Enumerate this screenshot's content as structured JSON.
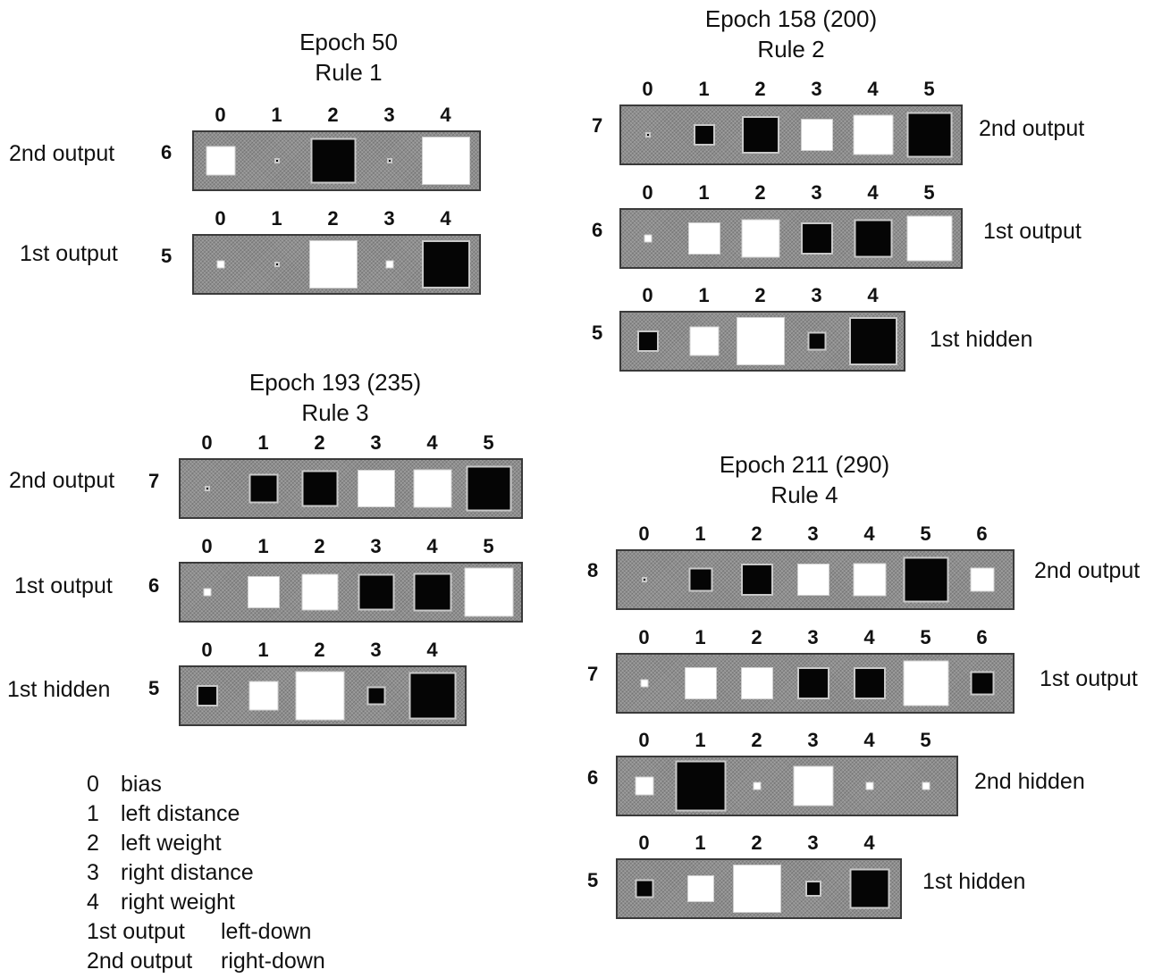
{
  "panels": [
    {
      "title": "Epoch 50",
      "subtitle": "Rule 1",
      "rows": [
        {
          "unit": "6",
          "label": "2nd output",
          "cols": [
            "0",
            "1",
            "2",
            "3",
            "4"
          ],
          "weights": [
            [
              "w",
              0.55
            ],
            [
              "b",
              0.1
            ],
            [
              "b",
              0.85
            ],
            [
              "b",
              0.1
            ],
            [
              "w",
              0.9
            ]
          ]
        },
        {
          "unit": "5",
          "label": "1st output",
          "cols": [
            "0",
            "1",
            "2",
            "3",
            "4"
          ],
          "weights": [
            [
              "w",
              0.15
            ],
            [
              "b",
              0.1
            ],
            [
              "w",
              0.9
            ],
            [
              "w",
              0.15
            ],
            [
              "b",
              0.9
            ]
          ]
        }
      ]
    },
    {
      "title": "Epoch 158 (200)",
      "subtitle": "Rule 2",
      "rows": [
        {
          "unit": "7",
          "label": "2nd output",
          "cols": [
            "0",
            "1",
            "2",
            "3",
            "4",
            "5"
          ],
          "weights": [
            [
              "b",
              0.1
            ],
            [
              "b",
              0.4
            ],
            [
              "b",
              0.7
            ],
            [
              "w",
              0.6
            ],
            [
              "w",
              0.75
            ],
            [
              "b",
              0.85
            ]
          ]
        },
        {
          "unit": "6",
          "label": "1st output",
          "cols": [
            "0",
            "1",
            "2",
            "3",
            "4",
            "5"
          ],
          "weights": [
            [
              "w",
              0.15
            ],
            [
              "w",
              0.6
            ],
            [
              "w",
              0.72
            ],
            [
              "b",
              0.6
            ],
            [
              "b",
              0.72
            ],
            [
              "w",
              0.85
            ]
          ]
        },
        {
          "unit": "5",
          "label": "1st hidden",
          "cols": [
            "0",
            "1",
            "2",
            "3",
            "4"
          ],
          "weights": [
            [
              "b",
              0.4
            ],
            [
              "w",
              0.55
            ],
            [
              "w",
              0.9
            ],
            [
              "b",
              0.35
            ],
            [
              "b",
              0.9
            ]
          ]
        }
      ]
    },
    {
      "title": "Epoch 193 (235)",
      "subtitle": "Rule 3",
      "rows": [
        {
          "unit": "7",
          "label": "2nd output",
          "cols": [
            "0",
            "1",
            "2",
            "3",
            "4",
            "5"
          ],
          "weights": [
            [
              "b",
              0.1
            ],
            [
              "b",
              0.55
            ],
            [
              "b",
              0.68
            ],
            [
              "w",
              0.7
            ],
            [
              "w",
              0.72
            ],
            [
              "b",
              0.85
            ]
          ]
        },
        {
          "unit": "6",
          "label": "1st output",
          "cols": [
            "0",
            "1",
            "2",
            "3",
            "4",
            "5"
          ],
          "weights": [
            [
              "w",
              0.15
            ],
            [
              "w",
              0.6
            ],
            [
              "w",
              0.68
            ],
            [
              "b",
              0.68
            ],
            [
              "b",
              0.72
            ],
            [
              "w",
              0.92
            ]
          ]
        },
        {
          "unit": "5",
          "label": "1st hidden",
          "cols": [
            "0",
            "1",
            "2",
            "3",
            "4"
          ],
          "weights": [
            [
              "b",
              0.4
            ],
            [
              "w",
              0.55
            ],
            [
              "w",
              0.92
            ],
            [
              "b",
              0.35
            ],
            [
              "b",
              0.88
            ]
          ]
        }
      ]
    },
    {
      "title": "Epoch 211 (290)",
      "subtitle": "Rule 4",
      "rows": [
        {
          "unit": "8",
          "label": "2nd output",
          "cols": [
            "0",
            "1",
            "2",
            "3",
            "4",
            "5",
            "6"
          ],
          "weights": [
            [
              "b",
              0.1
            ],
            [
              "b",
              0.45
            ],
            [
              "b",
              0.6
            ],
            [
              "w",
              0.6
            ],
            [
              "w",
              0.62
            ],
            [
              "b",
              0.85
            ],
            [
              "w",
              0.45
            ]
          ]
        },
        {
          "unit": "7",
          "label": "1st output",
          "cols": [
            "0",
            "1",
            "2",
            "3",
            "4",
            "5",
            "6"
          ],
          "weights": [
            [
              "w",
              0.15
            ],
            [
              "w",
              0.6
            ],
            [
              "w",
              0.6
            ],
            [
              "b",
              0.6
            ],
            [
              "b",
              0.6
            ],
            [
              "w",
              0.85
            ],
            [
              "b",
              0.45
            ]
          ]
        },
        {
          "unit": "6",
          "label": "2nd hidden",
          "cols": [
            "0",
            "1",
            "2",
            "3",
            "4",
            "5"
          ],
          "weights": [
            [
              "w",
              0.35
            ],
            [
              "b",
              0.95
            ],
            [
              "w",
              0.15
            ],
            [
              "w",
              0.75
            ],
            [
              "w",
              0.15
            ],
            [
              "w",
              0.15
            ]
          ]
        },
        {
          "unit": "5",
          "label": "1st hidden",
          "cols": [
            "0",
            "1",
            "2",
            "3",
            "4"
          ],
          "weights": [
            [
              "b",
              0.35
            ],
            [
              "w",
              0.5
            ],
            [
              "w",
              0.9
            ],
            [
              "b",
              0.3
            ],
            [
              "b",
              0.75
            ]
          ]
        }
      ]
    }
  ],
  "legend": [
    {
      "key": "0",
      "text": "bias"
    },
    {
      "key": "1",
      "text": "left distance"
    },
    {
      "key": "2",
      "text": "left weight"
    },
    {
      "key": "3",
      "text": "right distance"
    },
    {
      "key": "4",
      "text": "right weight"
    },
    {
      "key": "1st output",
      "text": "left-down"
    },
    {
      "key": "2nd output",
      "text": "right-down"
    }
  ]
}
